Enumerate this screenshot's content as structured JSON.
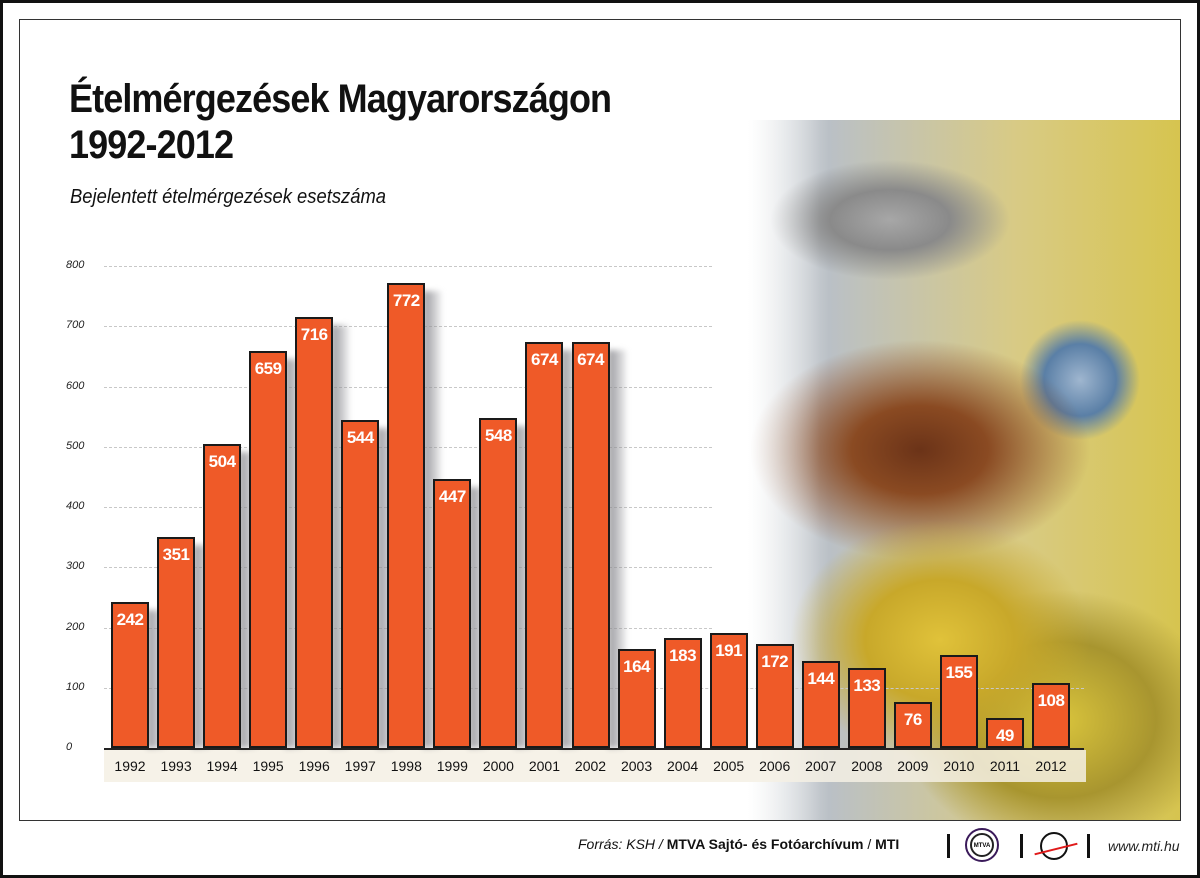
{
  "title_line1": "Ételmérgezések Magyarországon",
  "title_line2": "1992-2012",
  "subtitle": "Bejelentett ételmérgezések esetszáma",
  "y_ticks": [
    "800",
    "700",
    "600",
    "500",
    "400",
    "300",
    "200",
    "100",
    "0"
  ],
  "years": [
    "1992",
    "1993",
    "1994",
    "1995",
    "1996",
    "1997",
    "1998",
    "1999",
    "2000",
    "2001",
    "2002",
    "2003",
    "2004",
    "2005",
    "2006",
    "2007",
    "2008",
    "2009",
    "2010",
    "2011",
    "2012"
  ],
  "values": [
    "242",
    "351",
    "504",
    "659",
    "716",
    "544",
    "772",
    "447",
    "548",
    "674",
    "674",
    "164",
    "183",
    "191",
    "172",
    "144",
    "133",
    "76",
    "155",
    "49",
    "108"
  ],
  "footer": {
    "source_prefix": "Forrás: KSH /",
    "source_bold": "MTVA Sajtó- és Fotóarchívum",
    "source_sep": "/",
    "source_mti": "MTI",
    "logo_mtva_text": "MTVA",
    "url": "www.mti.hu"
  },
  "colors": {
    "bar": "#ef5a28",
    "bar_border": "#1a1a1a",
    "label": "#ffffff"
  },
  "chart_data": {
    "type": "bar",
    "title": "Ételmérgezések Magyarországon 1992-2012",
    "subtitle": "Bejelentett ételmérgezések esetszáma",
    "categories": [
      "1992",
      "1993",
      "1994",
      "1995",
      "1996",
      "1997",
      "1998",
      "1999",
      "2000",
      "2001",
      "2002",
      "2003",
      "2004",
      "2005",
      "2006",
      "2007",
      "2008",
      "2009",
      "2010",
      "2011",
      "2012"
    ],
    "values": [
      242,
      351,
      504,
      659,
      716,
      544,
      772,
      447,
      548,
      674,
      674,
      164,
      183,
      191,
      172,
      144,
      133,
      76,
      155,
      49,
      108
    ],
    "xlabel": "",
    "ylabel": "",
    "ylim": [
      0,
      800
    ],
    "yticks": [
      0,
      100,
      200,
      300,
      400,
      500,
      600,
      700,
      800
    ],
    "grid": true,
    "data_labels": true,
    "source": "Forrás: KSH / MTVA Sajtó- és Fotóarchívum / MTI"
  }
}
